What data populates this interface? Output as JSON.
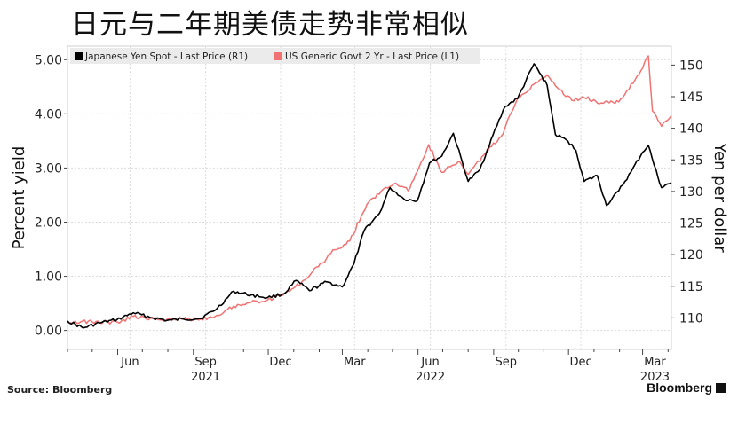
{
  "page_title": "日元与二年期美债走势非常相似",
  "source_text": "Source: Bloomberg",
  "brand_text": "Bloomberg",
  "brand_icon": "bloomberg-logo-icon",
  "chart_data": {
    "type": "line",
    "title": "日元与二年期美债走势非常相似",
    "ylabel": "Percent yield",
    "y2label": "Yen per dollar",
    "ylim": [
      -0.35,
      5.25
    ],
    "y2lim": [
      105.0,
      153.0
    ],
    "yticks": [
      "0.00",
      "1.00",
      "2.00",
      "3.00",
      "4.00",
      "5.00"
    ],
    "y2ticks": [
      "110",
      "115",
      "120",
      "125",
      "130",
      "135",
      "140",
      "145",
      "150"
    ],
    "xlim": [
      "2021-04-01",
      "2023-04-05"
    ],
    "month_ticks": [
      "Jun",
      "Sep",
      "Dec",
      "Mar",
      "Jun",
      "Sep",
      "Dec",
      "Mar"
    ],
    "year_labels": [
      "2021",
      "2022",
      "2023"
    ],
    "grid": true,
    "legend": "top-left",
    "series": [
      {
        "name": "Japanese Yen Spot - Last Price (R1)",
        "axis": "right",
        "color": "#000000",
        "points": [
          [
            "2021-04-01",
            109.5
          ],
          [
            "2021-04-20",
            108.4
          ],
          [
            "2021-05-10",
            109.2
          ],
          [
            "2021-05-31",
            109.7
          ],
          [
            "2021-06-20",
            110.8
          ],
          [
            "2021-07-10",
            110.1
          ],
          [
            "2021-07-31",
            109.6
          ],
          [
            "2021-08-20",
            109.8
          ],
          [
            "2021-09-10",
            109.9
          ],
          [
            "2021-09-30",
            111.5
          ],
          [
            "2021-10-20",
            114.2
          ],
          [
            "2021-11-10",
            113.6
          ],
          [
            "2021-11-30",
            113.2
          ],
          [
            "2021-12-20",
            113.8
          ],
          [
            "2022-01-04",
            115.9
          ],
          [
            "2022-01-20",
            114.3
          ],
          [
            "2022-02-10",
            115.7
          ],
          [
            "2022-03-01",
            114.9
          ],
          [
            "2022-03-15",
            118.5
          ],
          [
            "2022-03-28",
            123.9
          ],
          [
            "2022-04-15",
            126.5
          ],
          [
            "2022-04-28",
            130.6
          ],
          [
            "2022-05-15",
            128.8
          ],
          [
            "2022-05-31",
            128.5
          ],
          [
            "2022-06-15",
            134.5
          ],
          [
            "2022-06-30",
            135.6
          ],
          [
            "2022-07-14",
            139.2
          ],
          [
            "2022-08-01",
            131.6
          ],
          [
            "2022-08-15",
            133.4
          ],
          [
            "2022-08-31",
            138.9
          ],
          [
            "2022-09-15",
            143.5
          ],
          [
            "2022-09-30",
            144.7
          ],
          [
            "2022-10-20",
            150.2
          ],
          [
            "2022-11-05",
            146.8
          ],
          [
            "2022-11-15",
            139.0
          ],
          [
            "2022-11-30",
            138.0
          ],
          [
            "2022-12-10",
            136.5
          ],
          [
            "2022-12-20",
            131.6
          ],
          [
            "2023-01-05",
            132.5
          ],
          [
            "2023-01-16",
            127.8
          ],
          [
            "2023-01-31",
            130.1
          ],
          [
            "2023-02-15",
            133.1
          ],
          [
            "2023-03-01",
            136.2
          ],
          [
            "2023-03-08",
            137.3
          ],
          [
            "2023-03-15",
            134.2
          ],
          [
            "2023-03-24",
            130.6
          ],
          [
            "2023-04-05",
            131.4
          ]
        ]
      },
      {
        "name": "US Generic Govt 2 Yr - Last Price (L1)",
        "axis": "left",
        "color": "#f07272",
        "points": [
          [
            "2021-04-01",
            0.16
          ],
          [
            "2021-05-01",
            0.16
          ],
          [
            "2021-06-01",
            0.15
          ],
          [
            "2021-06-20",
            0.26
          ],
          [
            "2021-07-20",
            0.2
          ],
          [
            "2021-08-20",
            0.22
          ],
          [
            "2021-09-10",
            0.21
          ],
          [
            "2021-09-30",
            0.28
          ],
          [
            "2021-10-20",
            0.45
          ],
          [
            "2021-11-10",
            0.52
          ],
          [
            "2021-11-30",
            0.56
          ],
          [
            "2021-12-20",
            0.67
          ],
          [
            "2022-01-10",
            0.88
          ],
          [
            "2022-01-31",
            1.18
          ],
          [
            "2022-02-20",
            1.49
          ],
          [
            "2022-03-10",
            1.65
          ],
          [
            "2022-03-31",
            2.33
          ],
          [
            "2022-04-20",
            2.61
          ],
          [
            "2022-05-05",
            2.72
          ],
          [
            "2022-05-20",
            2.58
          ],
          [
            "2022-06-14",
            3.43
          ],
          [
            "2022-06-30",
            2.92
          ],
          [
            "2022-07-20",
            3.12
          ],
          [
            "2022-08-01",
            2.88
          ],
          [
            "2022-08-20",
            3.24
          ],
          [
            "2022-09-10",
            3.58
          ],
          [
            "2022-09-30",
            4.28
          ],
          [
            "2022-10-20",
            4.55
          ],
          [
            "2022-11-05",
            4.72
          ],
          [
            "2022-11-20",
            4.45
          ],
          [
            "2022-12-05",
            4.25
          ],
          [
            "2022-12-20",
            4.3
          ],
          [
            "2023-01-10",
            4.2
          ],
          [
            "2023-01-31",
            4.22
          ],
          [
            "2023-02-20",
            4.63
          ],
          [
            "2023-03-08",
            5.07
          ],
          [
            "2023-03-13",
            4.05
          ],
          [
            "2023-03-24",
            3.77
          ],
          [
            "2023-04-05",
            3.97
          ]
        ]
      }
    ]
  }
}
